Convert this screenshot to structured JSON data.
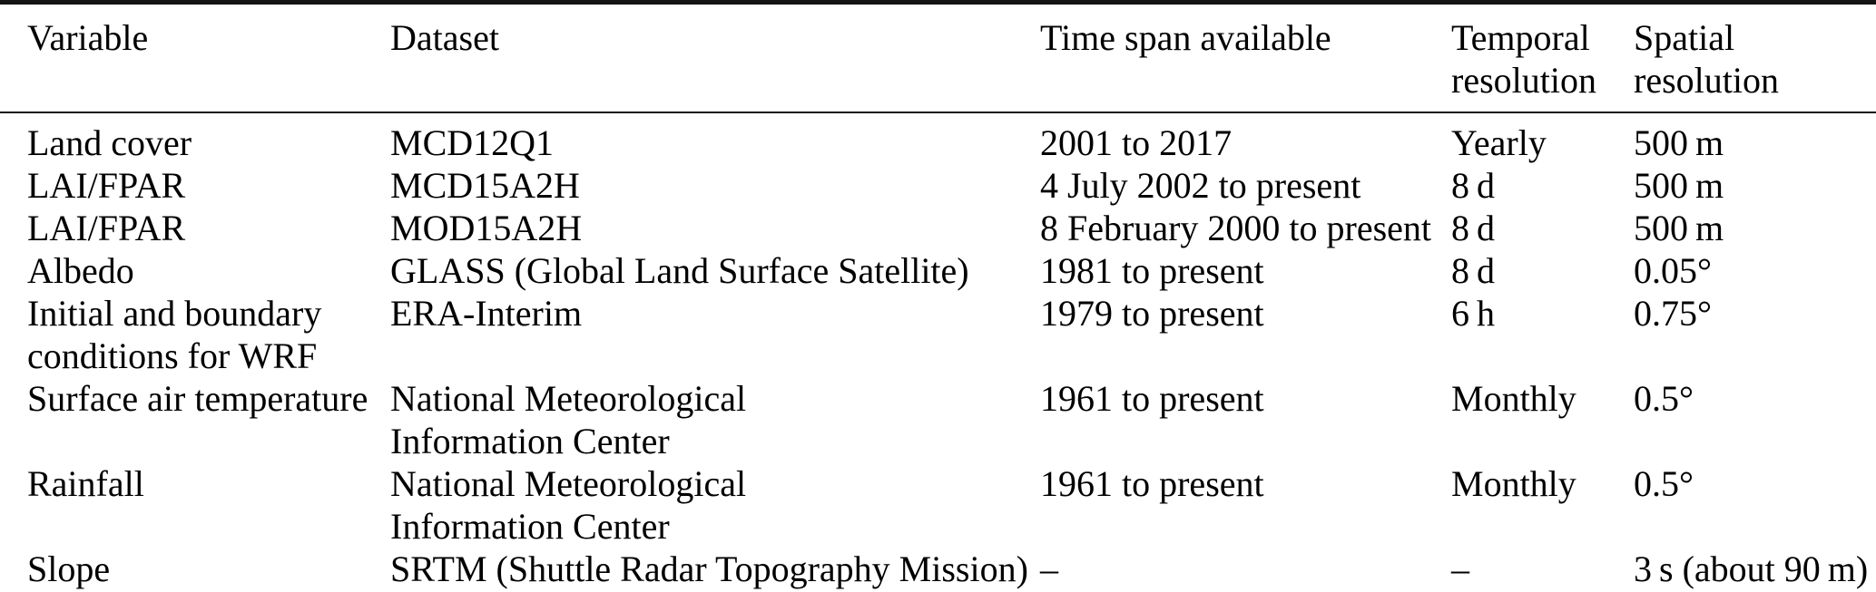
{
  "colors": {
    "background": "#ffffff",
    "text": "#000000",
    "rule": "#141414"
  },
  "table": {
    "columns": [
      {
        "key": "variable",
        "label": "Variable"
      },
      {
        "key": "dataset",
        "label": "Dataset"
      },
      {
        "key": "time_span",
        "label": "Time span available"
      },
      {
        "key": "temporal_resolution",
        "label": "Temporal\nresolution"
      },
      {
        "key": "spatial_resolution",
        "label": "Spatial\nresolution"
      }
    ],
    "rows": [
      {
        "variable": "Land cover",
        "dataset": "MCD12Q1",
        "time_span": "2001 to 2017",
        "temporal_resolution": "Yearly",
        "spatial_resolution": "500 m"
      },
      {
        "variable": "LAI/FPAR",
        "dataset": "MCD15A2H",
        "time_span": "4 July 2002 to present",
        "temporal_resolution": "8 d",
        "spatial_resolution": "500 m"
      },
      {
        "variable": "LAI/FPAR",
        "dataset": "MOD15A2H",
        "time_span": "8 February 2000 to present",
        "temporal_resolution": "8 d",
        "spatial_resolution": "500 m"
      },
      {
        "variable": "Albedo",
        "dataset": "GLASS (Global Land Surface Satellite)",
        "time_span": "1981 to present",
        "temporal_resolution": "8 d",
        "spatial_resolution": "0.05°"
      },
      {
        "variable": "Initial and boundary\nconditions for WRF",
        "dataset": "ERA-Interim",
        "time_span": "1979 to present",
        "temporal_resolution": "6 h",
        "spatial_resolution": "0.75°"
      },
      {
        "variable": "Surface air temperature",
        "dataset": "National Meteorological\nInformation Center",
        "time_span": "1961 to present",
        "temporal_resolution": "Monthly",
        "spatial_resolution": "0.5°"
      },
      {
        "variable": "Rainfall",
        "dataset": "National Meteorological\nInformation Center",
        "time_span": "1961 to present",
        "temporal_resolution": "Monthly",
        "spatial_resolution": "0.5°"
      },
      {
        "variable": "Slope",
        "dataset": "SRTM (Shuttle Radar Topography Mission)",
        "time_span": "–",
        "temporal_resolution": "–",
        "spatial_resolution": "3 s (about 90 m)"
      }
    ]
  }
}
